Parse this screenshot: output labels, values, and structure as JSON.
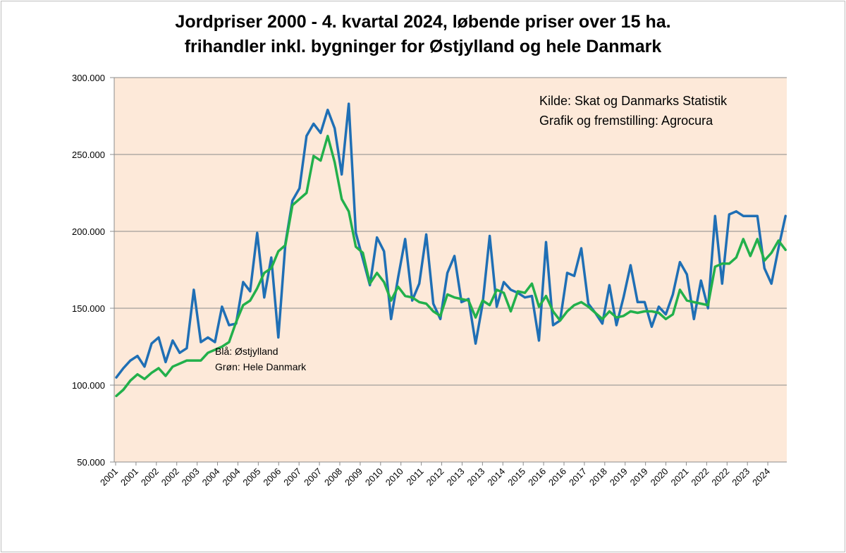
{
  "chart_data": {
    "type": "line",
    "title_lines": [
      "Jordpriser 2000 - 4. kvartal 2024, løbende priser over 15 ha.",
      "frihandler inkl. bygninger for Østjylland og hele Danmark"
    ],
    "source_lines": [
      "Kilde: Skat og Danmarks Statistik",
      "Grafik og fremstilling: Agrocura"
    ],
    "legend_notes": [
      "Blå: Østjylland",
      "Grøn: Hele Danmark"
    ],
    "ylim": [
      50000,
      300000
    ],
    "yticks": [
      {
        "value": 50000,
        "label": "50.000"
      },
      {
        "value": 100000,
        "label": "100.000"
      },
      {
        "value": 150000,
        "label": "150.000"
      },
      {
        "value": 200000,
        "label": "200.000"
      },
      {
        "value": 250000,
        "label": "250.000"
      },
      {
        "value": 300000,
        "label": "300.000"
      }
    ],
    "xlabels": [
      "2001",
      "2001",
      "2002",
      "2002",
      "2003",
      "2004",
      "2004",
      "2005",
      "2006",
      "2007",
      "2007",
      "2008",
      "2009",
      "2010",
      "2010",
      "2011",
      "2012",
      "2013",
      "2013",
      "2014",
      "2015",
      "2016",
      "2016",
      "2017",
      "2018",
      "2019",
      "2019",
      "2020",
      "2021",
      "2022",
      "2022",
      "2023",
      "2024"
    ],
    "grid": "horizontal",
    "plot_background": "#fde9d9",
    "series": [
      {
        "name": "Østjylland",
        "color": "#1f6fb5",
        "values": [
          105000,
          111000,
          116000,
          119000,
          112000,
          127000,
          131000,
          115000,
          129000,
          121000,
          124000,
          162000,
          128000,
          131000,
          128000,
          151000,
          139000,
          140000,
          167000,
          161000,
          199000,
          157000,
          183000,
          131000,
          192000,
          220000,
          228000,
          262000,
          270000,
          264000,
          279000,
          267000,
          237000,
          283000,
          199000,
          182000,
          165000,
          196000,
          187000,
          143000,
          170000,
          195000,
          155000,
          166000,
          198000,
          153000,
          143000,
          173000,
          184000,
          154000,
          156000,
          127000,
          153000,
          197000,
          151000,
          167000,
          162000,
          160000,
          157000,
          158000,
          129000,
          193000,
          139000,
          142000,
          173000,
          171000,
          189000,
          153000,
          147000,
          140000,
          165000,
          139000,
          157000,
          178000,
          154000,
          154000,
          138000,
          151000,
          146000,
          159000,
          180000,
          172000,
          143000,
          168000,
          150000,
          210000,
          166000,
          211000,
          213000,
          210000,
          210000,
          210000,
          176000,
          166000,
          189000,
          210000
        ]
      },
      {
        "name": "Hele Danmark",
        "color": "#22b04b",
        "values": [
          93000,
          97000,
          103000,
          107000,
          104000,
          108000,
          111000,
          106000,
          112000,
          114000,
          116000,
          116000,
          116000,
          121000,
          123000,
          125000,
          128000,
          141000,
          152000,
          155000,
          163000,
          173000,
          176000,
          187000,
          191000,
          217000,
          221000,
          225000,
          249000,
          246000,
          262000,
          245000,
          221000,
          213000,
          190000,
          186000,
          166000,
          173000,
          167000,
          155000,
          164000,
          158000,
          157000,
          154000,
          153000,
          148000,
          145000,
          159000,
          157000,
          156000,
          155000,
          144000,
          155000,
          152000,
          162000,
          160000,
          148000,
          161000,
          160000,
          166000,
          151000,
          158000,
          148000,
          142000,
          148000,
          152000,
          154000,
          151000,
          147000,
          143000,
          148000,
          144000,
          145000,
          148000,
          147000,
          148000,
          148000,
          147000,
          143000,
          146000,
          162000,
          155000,
          154000,
          153000,
          152000,
          177000,
          179000,
          179000,
          183000,
          195000,
          184000,
          195000,
          181000,
          186000,
          194000,
          188000
        ]
      }
    ]
  }
}
